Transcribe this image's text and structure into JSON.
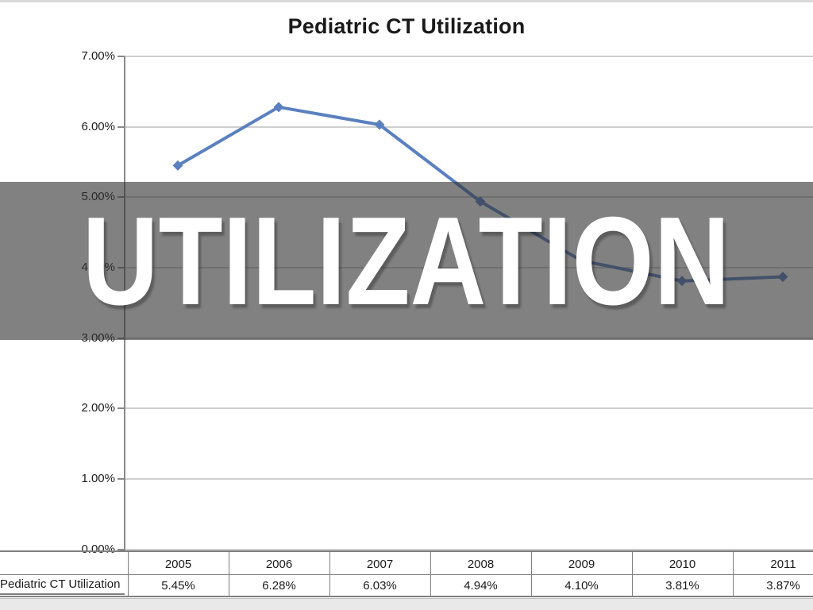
{
  "slide": {
    "banner_text": "UTILIZATION"
  },
  "colors": {
    "line": "#5b80bf",
    "banner_base": "#333333",
    "banner_text": "#ffffff",
    "gridline": "#cfcfcf",
    "axis": "#8a8a8a",
    "table_border": "#7f7f7f"
  },
  "table": {
    "row_label": "Pediatric CT Utilization"
  },
  "chart_data": {
    "type": "line",
    "title": "Pediatric CT Utilization",
    "categories": [
      "2005",
      "2006",
      "2007",
      "2008",
      "2009",
      "2010",
      "2011"
    ],
    "series": [
      {
        "name": "Pediatric CT Utilization",
        "values": [
          5.45,
          6.28,
          6.03,
          4.94,
          4.1,
          3.81,
          3.87
        ]
      }
    ],
    "value_labels": [
      "5.45%",
      "6.28%",
      "6.03%",
      "4.94%",
      "4.10%",
      "3.81%",
      "3.87%"
    ],
    "xlabel": "",
    "ylabel": "",
    "ylim": [
      0,
      7
    ],
    "ytick_labels": [
      "7.00%",
      "6.00%",
      "5.00%",
      "4.00%",
      "3.00%",
      "2.00%",
      "1.00%",
      "0.00%"
    ],
    "grid": true,
    "marker": "diamond",
    "legend_position": "bottom-table"
  }
}
